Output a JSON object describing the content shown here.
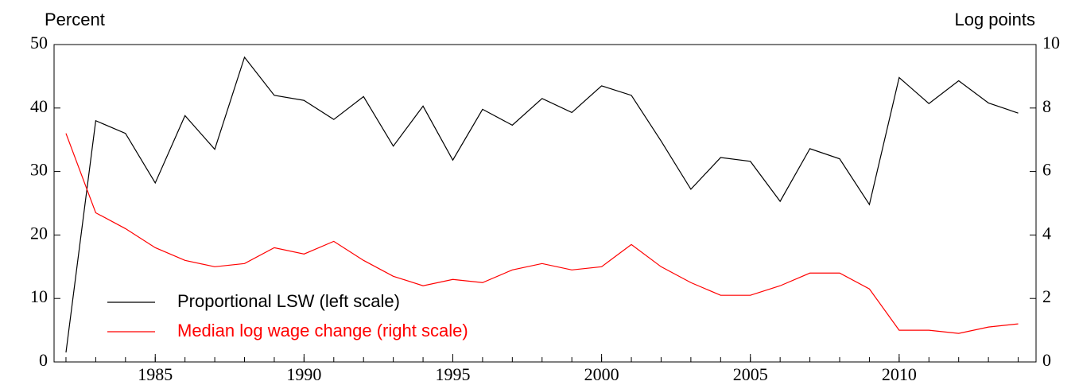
{
  "chart_data": {
    "type": "line",
    "y_label": "Percent",
    "y2_label": "Log points",
    "x": [
      1982,
      1983,
      1984,
      1985,
      1986,
      1987,
      1988,
      1989,
      1990,
      1991,
      1992,
      1993,
      1994,
      1995,
      1996,
      1997,
      1998,
      1999,
      2000,
      2001,
      2002,
      2003,
      2004,
      2005,
      2006,
      2007,
      2008,
      2009,
      2010,
      2011,
      2012,
      2013,
      2014
    ],
    "xlim": [
      1981.6,
      2014.6
    ],
    "xticks": [
      1985,
      1990,
      1995,
      2000,
      2005,
      2010
    ],
    "ylim": [
      0,
      50
    ],
    "yticks": [
      0,
      10,
      20,
      30,
      40,
      50
    ],
    "y2lim": [
      0,
      10
    ],
    "y2ticks": [
      0,
      2,
      4,
      6,
      8,
      10
    ],
    "legend": "lower left",
    "series": [
      {
        "name": "Proportional LSW (left scale)",
        "color": "#000000",
        "values": [
          1.5,
          38,
          36,
          28.2,
          38.8,
          33.5,
          48,
          42,
          41.2,
          38.2,
          41.8,
          34,
          40.3,
          31.8,
          39.8,
          37.3,
          41.5,
          39.3,
          43.5,
          42,
          34.8,
          27.2,
          32.2,
          31.6,
          25.3,
          33.6,
          32,
          24.8,
          44.8,
          40.7,
          44.3,
          40.8,
          39.2
        ]
      },
      {
        "name": "Median log wage change (right scale)",
        "color": "#ff0000",
        "axis": "y2",
        "values": [
          7.2,
          4.7,
          4.2,
          3.6,
          3.2,
          3.0,
          3.1,
          3.6,
          3.4,
          3.8,
          3.2,
          2.7,
          2.4,
          2.6,
          2.5,
          2.9,
          3.1,
          2.9,
          3.0,
          3.7,
          3.0,
          2.5,
          2.1,
          2.1,
          2.4,
          2.8,
          2.8,
          2.3,
          1.0,
          1.0,
          0.9,
          1.1,
          1.2
        ]
      }
    ]
  }
}
